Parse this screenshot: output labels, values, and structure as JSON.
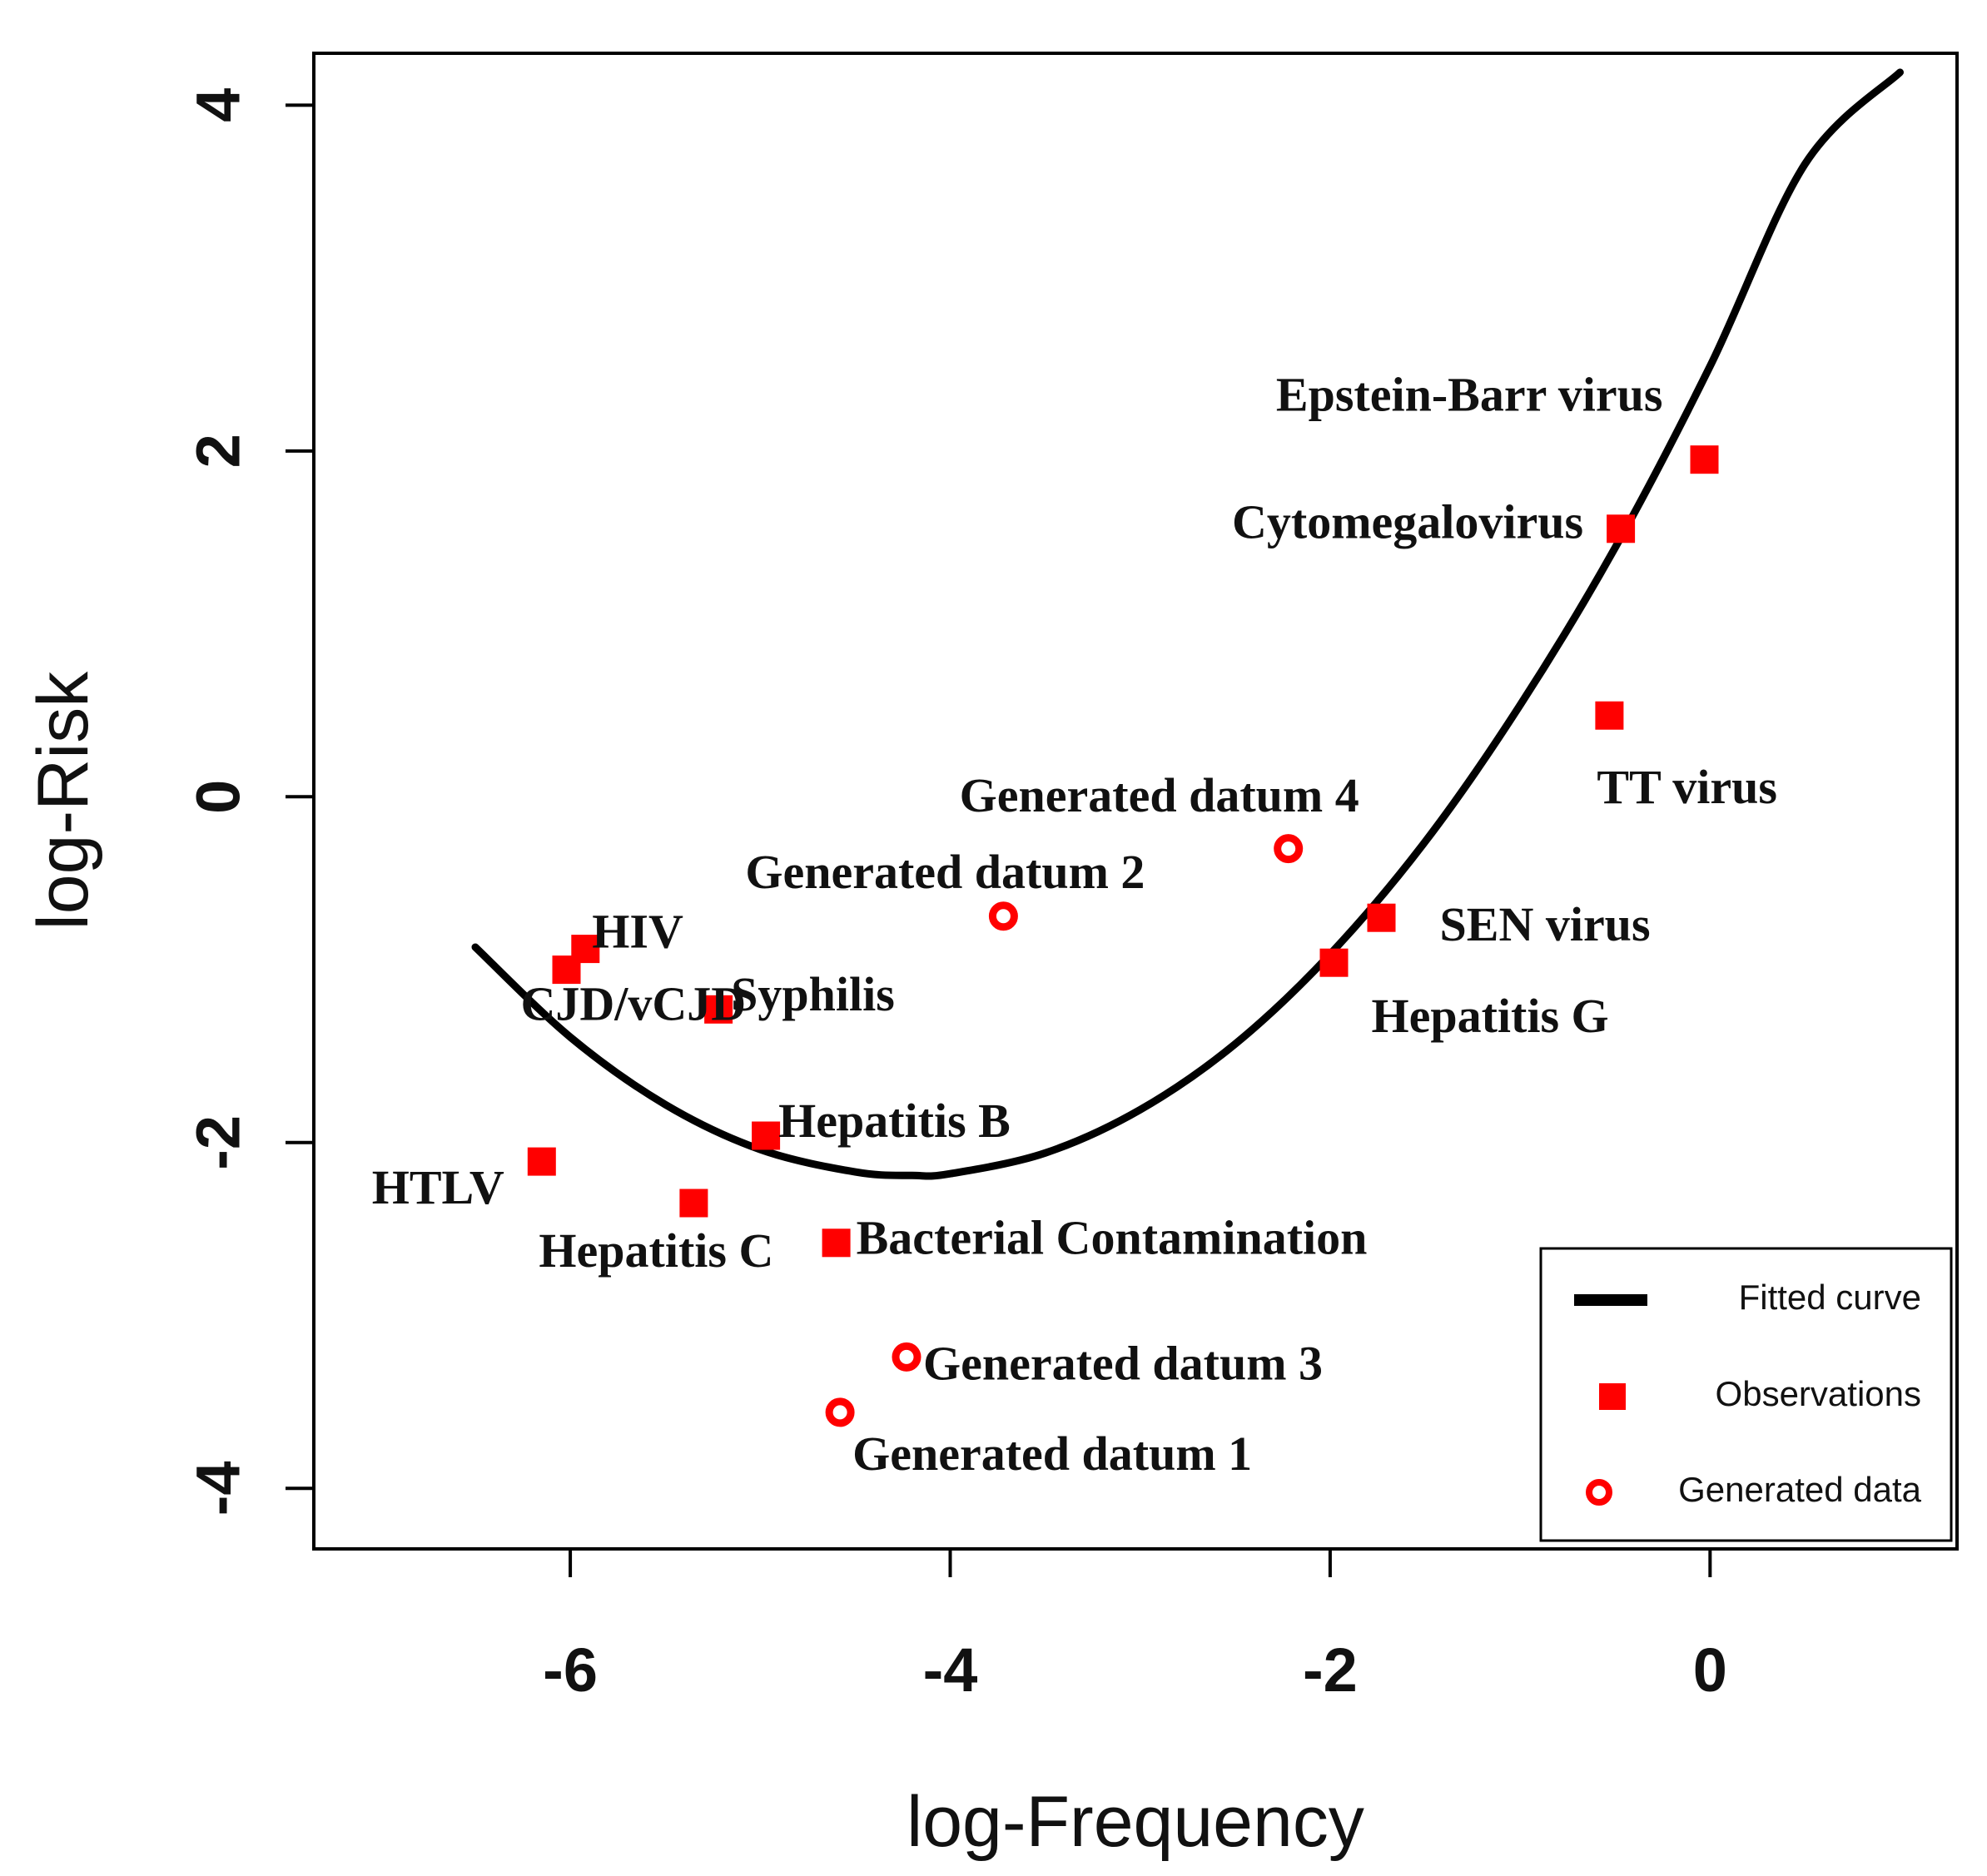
{
  "chart_data": {
    "type": "scatter",
    "xlabel": "log-Frequency",
    "ylabel": "log-Risk",
    "xlim": [
      -7.35,
      1.3
    ],
    "ylim": [
      -4.35,
      4.3
    ],
    "xticks": [
      -6,
      -4,
      -2,
      0
    ],
    "yticks": [
      -4,
      -2,
      0,
      2,
      4
    ],
    "x_tick_labels": [
      "-6",
      "-4",
      "-2",
      "0"
    ],
    "y_tick_labels": [
      "-4",
      "-2",
      "0",
      "2",
      "4"
    ],
    "grid": false,
    "legend": {
      "position": "bottom-right",
      "entries": [
        {
          "label": "Fitted curve",
          "marker": "line",
          "color": "#000000"
        },
        {
          "label": "Observations",
          "marker": "filled-square",
          "color": "#ff0000"
        },
        {
          "label": "Generated data",
          "marker": "open-circle",
          "color": "#ff0000"
        }
      ]
    },
    "series": [
      {
        "name": "Observations",
        "marker": "filled-square",
        "color": "#ff0000",
        "points": [
          {
            "label": "Epstein-Barr virus",
            "x": -0.03,
            "y": 1.95
          },
          {
            "label": "Cytomegalovirus",
            "x": -0.47,
            "y": 1.55
          },
          {
            "label": "TT virus",
            "x": -0.53,
            "y": 0.47
          },
          {
            "label": "SEN virus",
            "x": -1.73,
            "y": -0.7
          },
          {
            "label": "Hepatitis G",
            "x": -1.98,
            "y": -0.96
          },
          {
            "label": "HIV",
            "x": -5.92,
            "y": -0.88
          },
          {
            "label": "CJD/vCJD",
            "x": -6.02,
            "y": -1.0
          },
          {
            "label": "Syphilis",
            "x": -5.22,
            "y": -1.23
          },
          {
            "label": "Hepatitis B",
            "x": -4.97,
            "y": -1.96
          },
          {
            "label": "HTLV",
            "x": -6.15,
            "y": -2.11
          },
          {
            "label": "Hepatitis C",
            "x": -5.35,
            "y": -2.35
          },
          {
            "label": "Bacterial Contamination",
            "x": -4.6,
            "y": -2.58
          }
        ]
      },
      {
        "name": "Generated data",
        "marker": "open-circle",
        "color": "#ff0000",
        "points": [
          {
            "label": "Generated datum 4",
            "x": -2.22,
            "y": -0.3
          },
          {
            "label": "Generated datum 2",
            "x": -3.72,
            "y": -0.69
          },
          {
            "label": "Generated datum 3",
            "x": -4.23,
            "y": -3.24
          },
          {
            "label": "Generated datum 1",
            "x": -4.58,
            "y": -3.56
          }
        ]
      },
      {
        "name": "Fitted curve",
        "marker": "line",
        "color": "#000000",
        "x": [
          -6.5,
          -6.0,
          -5.5,
          -5.0,
          -4.5,
          -4.2,
          -4.0,
          -3.5,
          -3.0,
          -2.5,
          -2.0,
          -1.5,
          -1.0,
          -0.5,
          0.0,
          0.5,
          1.0
        ],
        "y": [
          -0.87,
          -1.39,
          -1.78,
          -2.04,
          -2.17,
          -2.19,
          -2.18,
          -2.06,
          -1.81,
          -1.43,
          -0.91,
          -0.26,
          0.53,
          1.44,
          2.49,
          3.66,
          4.19
        ]
      }
    ]
  }
}
